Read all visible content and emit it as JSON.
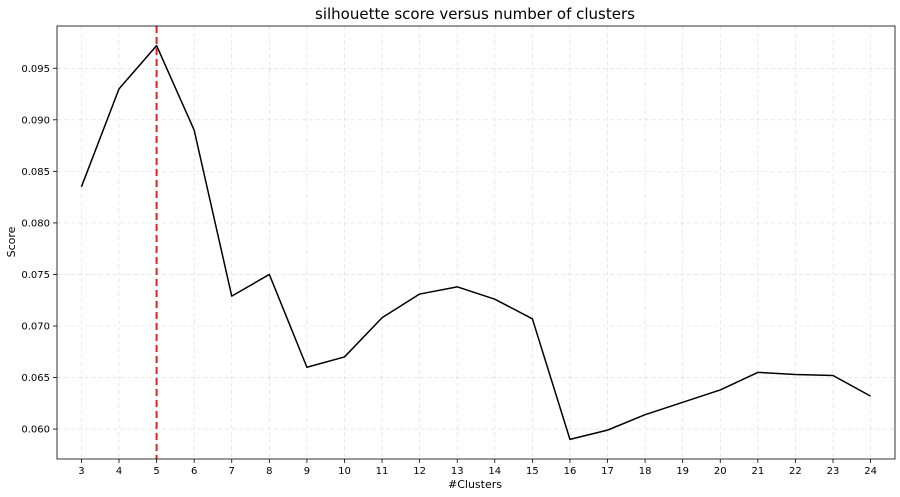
{
  "chart_data": {
    "type": "line",
    "title": "silhouette score versus number of clusters",
    "xlabel": "#Clusters",
    "ylabel": "Score",
    "x": [
      3,
      4,
      5,
      6,
      7,
      8,
      9,
      10,
      11,
      12,
      13,
      14,
      15,
      16,
      17,
      18,
      19,
      20,
      21,
      22,
      23,
      24
    ],
    "series": [
      {
        "values": [
          0.0835,
          0.093,
          0.0972,
          0.089,
          0.0729,
          0.075,
          0.066,
          0.067,
          0.0708,
          0.0731,
          0.0738,
          0.0726,
          0.0707,
          0.059,
          0.0599,
          0.0614,
          0.0626,
          0.0638,
          0.0655,
          0.0653,
          0.0652,
          0.0632
        ],
        "color": "#000000"
      }
    ],
    "reference_line": {
      "orientation": "vertical",
      "x": 5,
      "color": "#d62728",
      "style": "dashed"
    },
    "xlim": [
      2.35,
      24.65
    ],
    "ylim": [
      0.0571,
      0.0991
    ],
    "yticks": [
      0.06,
      0.065,
      0.07,
      0.075,
      0.08,
      0.085,
      0.09,
      0.095
    ],
    "ytick_labels": [
      "0.060",
      "0.065",
      "0.070",
      "0.075",
      "0.080",
      "0.085",
      "0.090",
      "0.095"
    ],
    "grid": true,
    "legend": "none"
  }
}
